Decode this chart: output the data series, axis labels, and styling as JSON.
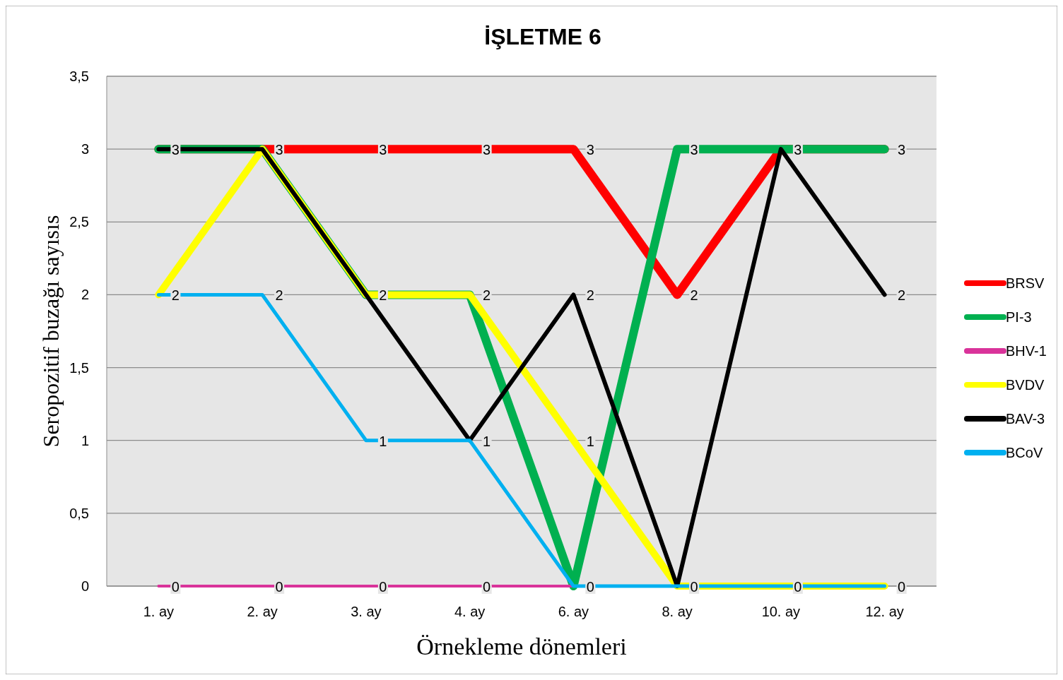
{
  "chart_data": {
    "type": "line",
    "title": "İŞLETME 6",
    "xlabel": "Örnekleme dönemleri",
    "ylabel": "Seropozitif buzağı sayısıs",
    "categories": [
      "1. ay",
      "2. ay",
      "3. ay",
      "4. ay",
      "6. ay",
      "8. ay",
      "10. ay",
      "12. ay"
    ],
    "series": [
      {
        "name": "BRSV",
        "color": "#ff0000",
        "values": [
          3,
          3,
          3,
          3,
          3,
          2,
          3,
          3
        ],
        "value_labels": [
          "3",
          "3",
          "3",
          "3",
          "3",
          "2",
          "3",
          "3"
        ]
      },
      {
        "name": "PI-3",
        "color": "#00b050",
        "values": [
          3,
          3,
          2,
          2,
          0,
          3,
          3,
          3
        ],
        "value_labels": [
          null,
          null,
          "2",
          "2",
          "0",
          "3",
          null,
          null
        ]
      },
      {
        "name": "BHV-1",
        "color": "#d9339a",
        "values": [
          0,
          0,
          0,
          0,
          0,
          0,
          null,
          null
        ],
        "value_labels": [
          "0",
          "0",
          "0",
          "0",
          null,
          null,
          null,
          null
        ]
      },
      {
        "name": "BVDV",
        "color": "#ffff00",
        "values": [
          2,
          3,
          2,
          2,
          1,
          0,
          0,
          0
        ],
        "value_labels": [
          "2",
          null,
          null,
          null,
          "1",
          "0",
          "0",
          "0"
        ]
      },
      {
        "name": "BAV-3",
        "color": "#000000",
        "values": [
          3,
          3,
          2,
          1,
          2,
          0,
          3,
          2
        ],
        "value_labels": [
          null,
          null,
          null,
          "1",
          "2",
          null,
          null,
          "2"
        ]
      },
      {
        "name": "BCoV",
        "color": "#00b0f0",
        "values": [
          2,
          2,
          1,
          1,
          0,
          0,
          0,
          0
        ],
        "value_labels": [
          null,
          "2",
          "1",
          null,
          null,
          null,
          null,
          null
        ]
      }
    ],
    "ylim": [
      0,
      3.5
    ],
    "yticks": [
      0,
      {
        "value": 0.5,
        "label": "0,5"
      },
      1,
      {
        "value": 1.5,
        "label": "1,5"
      },
      2,
      {
        "value": 2.5,
        "label": "2,5"
      },
      3,
      {
        "value": 3.5,
        "label": "3,5"
      }
    ],
    "grid": "y",
    "legend": "right",
    "marker": "none",
    "line_style": "solid"
  }
}
